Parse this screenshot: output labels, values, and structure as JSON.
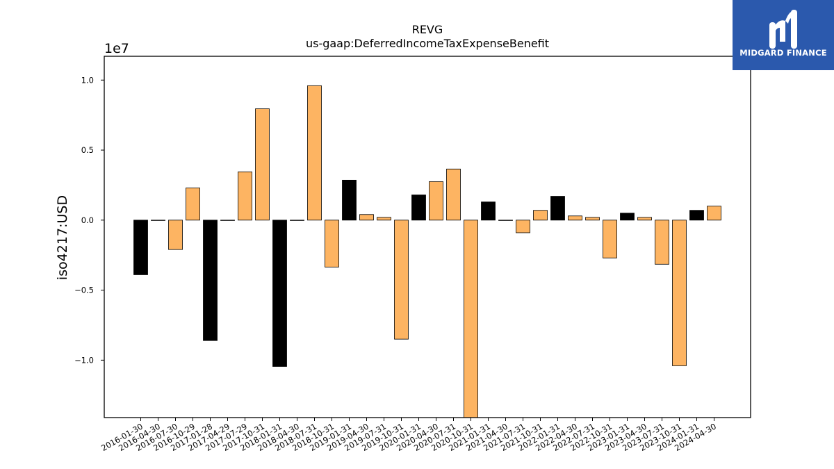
{
  "chart_data": {
    "type": "bar",
    "title": "REVG",
    "subtitle": "us-gaap:DeferredIncomeTaxExpenseBenefit",
    "ylabel": "iso4217:USD",
    "xlabel": "",
    "offset_label": "1e7",
    "scale": 10000000,
    "ylim": [
      -14100000,
      11700000
    ],
    "yticks": [
      -10000000,
      -5000000,
      0,
      5000000,
      10000000
    ],
    "ytick_labels": [
      "−1.0",
      "−0.5",
      "0.0",
      "0.5",
      "1.0"
    ],
    "categories": [
      "2016-01-30",
      "2016-04-30",
      "2016-07-30",
      "2016-10-29",
      "2017-01-28",
      "2017-04-29",
      "2017-07-29",
      "2017-10-31",
      "2018-01-31",
      "2018-04-30",
      "2018-07-31",
      "2018-10-31",
      "2019-01-31",
      "2019-04-30",
      "2019-07-31",
      "2019-10-31",
      "2020-01-31",
      "2020-04-30",
      "2020-07-31",
      "2020-10-31",
      "2021-01-31",
      "2021-04-30",
      "2021-07-31",
      "2021-10-31",
      "2022-01-31",
      "2022-04-30",
      "2022-07-31",
      "2022-10-31",
      "2023-01-31",
      "2023-04-30",
      "2023-07-31",
      "2023-10-31",
      "2024-01-31",
      "2024-04-30"
    ],
    "values": [
      -3900000,
      0,
      -2100000,
      2300000,
      -8600000,
      0,
      3450000,
      7950000,
      -10450000,
      0,
      9600000,
      -3350000,
      2850000,
      400000,
      200000,
      -8500000,
      1800000,
      2750000,
      3650000,
      -14100000,
      1300000,
      0,
      -900000,
      700000,
      1700000,
      300000,
      200000,
      -2700000,
      500000,
      200000,
      -3150000,
      -10400000,
      700000,
      1000000
    ],
    "bar_colors": [
      "#000000",
      "#000000",
      "#fdb462",
      "#fdb462",
      "#000000",
      "#000000",
      "#fdb462",
      "#fdb462",
      "#000000",
      "#000000",
      "#fdb462",
      "#fdb462",
      "#000000",
      "#fdb462",
      "#fdb462",
      "#fdb462",
      "#000000",
      "#fdb462",
      "#fdb462",
      "#fdb462",
      "#000000",
      "#000000",
      "#fdb462",
      "#fdb462",
      "#000000",
      "#fdb462",
      "#fdb462",
      "#fdb462",
      "#000000",
      "#fdb462",
      "#fdb462",
      "#fdb462",
      "#000000",
      "#fdb462"
    ],
    "grid": false,
    "legend": "none"
  },
  "logo": {
    "text": "MIDGARD FINANCE",
    "bg_color": "#2b59ad"
  }
}
